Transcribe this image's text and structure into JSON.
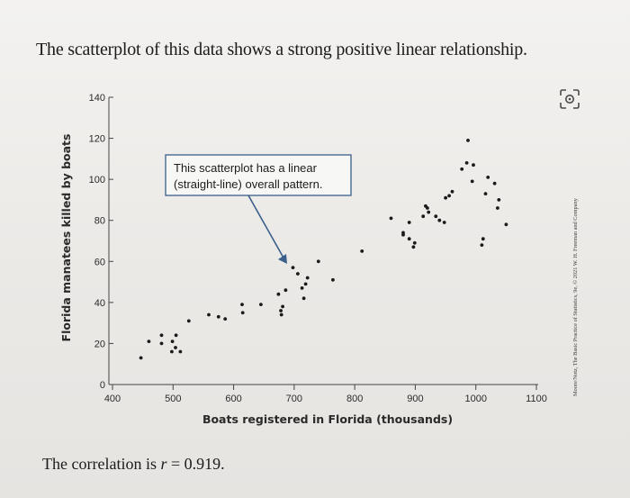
{
  "heading": "The scatterplot of this data shows a strong positive linear relationship.",
  "correlation": {
    "prefix": "The correlation is ",
    "symbol": "r",
    "suffix": " = 0.919."
  },
  "credit": "Moore/Notz, The Basic Practice of Statistics, 9e, © 2021 W. H. Freeman and Company",
  "icons": {
    "camera": "camera-scan-icon"
  },
  "colors": {
    "point": "#1a1a1a",
    "axis": "#444444",
    "callout_border": "#3a5f8a",
    "arrow": "#3a5f8a"
  },
  "chart_data": {
    "type": "scatter",
    "xlabel": "Boats registered in Florida (thousands)",
    "ylabel": "Florida manatees killed by boats",
    "xlim": [
      400,
      1100
    ],
    "ylim": [
      0,
      140
    ],
    "xticks": [
      "400",
      "500",
      "600",
      "700",
      "800",
      "900",
      "1000",
      "1100"
    ],
    "yticks": [
      "0",
      "20",
      "40",
      "60",
      "80",
      "100",
      "120",
      "140"
    ],
    "annotation": [
      "This scatterplot has a linear",
      "(straight-line) overall pattern."
    ],
    "points": [
      [
        447,
        13
      ],
      [
        460,
        21
      ],
      [
        481,
        24
      ],
      [
        481,
        20
      ],
      [
        498,
        16
      ],
      [
        499,
        21
      ],
      [
        505,
        24
      ],
      [
        504,
        18
      ],
      [
        512,
        16
      ],
      [
        526,
        31
      ],
      [
        559,
        34
      ],
      [
        575,
        33
      ],
      [
        586,
        32
      ],
      [
        614,
        39
      ],
      [
        615,
        35
      ],
      [
        645,
        39
      ],
      [
        674,
        44
      ],
      [
        678,
        36
      ],
      [
        679,
        34
      ],
      [
        681,
        38
      ],
      [
        686,
        46
      ],
      [
        698,
        57
      ],
      [
        706,
        54
      ],
      [
        713,
        47
      ],
      [
        716,
        42
      ],
      [
        719,
        49
      ],
      [
        722,
        52
      ],
      [
        740,
        60
      ],
      [
        764,
        51
      ],
      [
        812,
        65
      ],
      [
        860,
        81
      ],
      [
        880,
        73
      ],
      [
        880,
        74
      ],
      [
        890,
        79
      ],
      [
        890,
        71
      ],
      [
        897,
        67
      ],
      [
        899,
        69
      ],
      [
        913,
        82
      ],
      [
        917,
        87
      ],
      [
        920,
        86
      ],
      [
        922,
        84
      ],
      [
        934,
        82
      ],
      [
        940,
        80
      ],
      [
        948,
        79
      ],
      [
        950,
        91
      ],
      [
        956,
        92
      ],
      [
        961,
        94
      ],
      [
        977,
        105
      ],
      [
        985,
        108
      ],
      [
        987,
        119
      ],
      [
        994,
        99
      ],
      [
        996,
        107
      ],
      [
        1010,
        68
      ],
      [
        1012,
        71
      ],
      [
        1016,
        93
      ],
      [
        1020,
        101
      ],
      [
        1031,
        98
      ],
      [
        1036,
        86
      ],
      [
        1038,
        90
      ],
      [
        1050,
        78
      ]
    ]
  }
}
